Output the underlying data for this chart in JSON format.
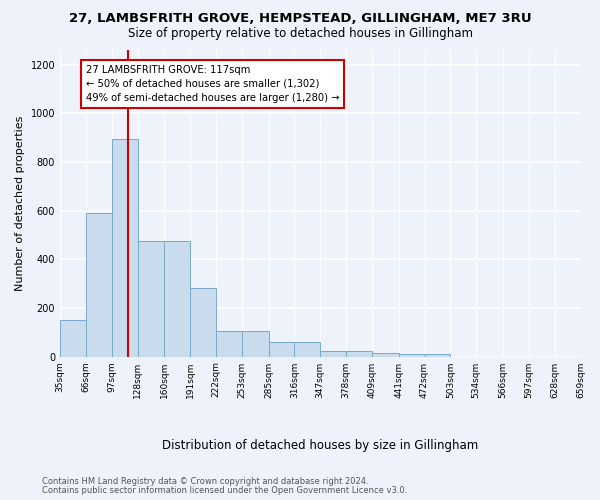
{
  "title1": "27, LAMBSFRITH GROVE, HEMPSTEAD, GILLINGHAM, ME7 3RU",
  "title2": "Size of property relative to detached houses in Gillingham",
  "xlabel": "Distribution of detached houses by size in Gillingham",
  "ylabel": "Number of detached properties",
  "bar_color": "#c8dcee",
  "bar_edgecolor": "#7aaac8",
  "vline_x": 117,
  "vline_color": "#cc0000",
  "annotation_text": "27 LAMBSFRITH GROVE: 117sqm\n← 50% of detached houses are smaller (1,302)\n49% of semi-detached houses are larger (1,280) →",
  "annotation_box_facecolor": "white",
  "annotation_box_edgecolor": "#cc0000",
  "bin_edges": [
    35,
    66,
    97,
    128,
    160,
    191,
    222,
    253,
    285,
    316,
    347,
    378,
    409,
    441,
    472,
    503,
    534,
    566,
    597,
    628,
    659
  ],
  "bar_heights": [
    150,
    590,
    895,
    475,
    475,
    280,
    105,
    105,
    60,
    60,
    25,
    25,
    15,
    10,
    10,
    0,
    0,
    0,
    0,
    0
  ],
  "footnote1": "Contains HM Land Registry data © Crown copyright and database right 2024.",
  "footnote2": "Contains public sector information licensed under the Open Government Licence v3.0.",
  "background_color": "#eef3fb",
  "ylim": [
    0,
    1260
  ],
  "yticks": [
    0,
    200,
    400,
    600,
    800,
    1000,
    1200
  ],
  "title1_fontsize": 9.5,
  "title2_fontsize": 8.5,
  "ylabel_fontsize": 8,
  "xlabel_fontsize": 8.5,
  "footnote_fontsize": 6.0,
  "tick_fontsize": 6.5
}
